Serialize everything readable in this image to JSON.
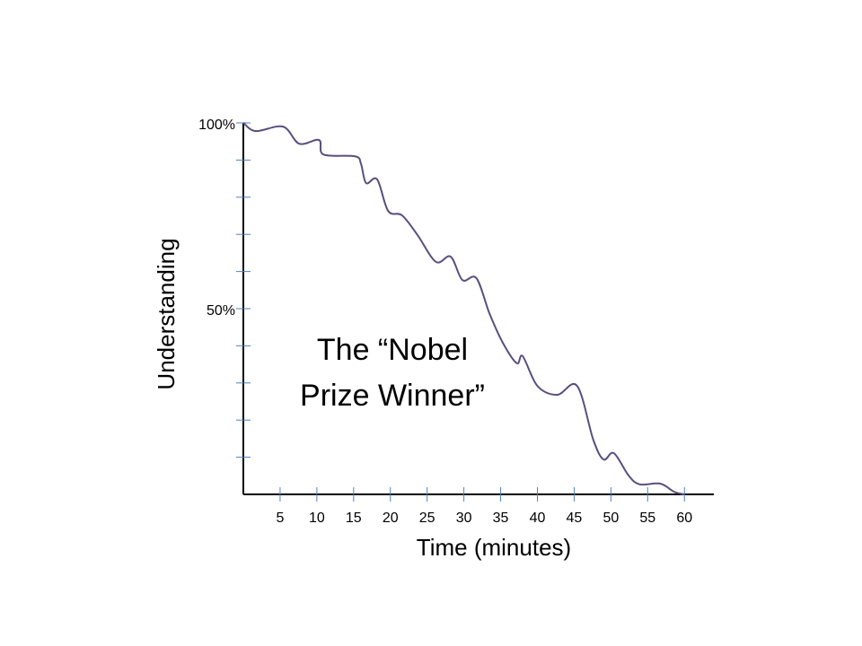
{
  "chart_data": {
    "type": "line",
    "annotation": [
      "The “Nobel",
      "Prize Winner”"
    ],
    "xlabel": "Time (minutes)",
    "ylabel": "Understanding",
    "xlim": [
      0,
      64
    ],
    "ylim": [
      0,
      100
    ],
    "xticks": [
      5,
      10,
      15,
      20,
      25,
      30,
      35,
      40,
      45,
      50,
      55,
      60
    ],
    "yticks": [
      {
        "value": 50,
        "label": "50%"
      },
      {
        "value": 100,
        "label": "100%"
      }
    ],
    "yminor_ticks": [
      10,
      20,
      30,
      40,
      60,
      70,
      80,
      90
    ],
    "x": [
      0,
      1.7,
      5.4,
      7.6,
      10.3,
      10.9,
      15.2,
      16,
      16.7,
      18.2,
      19.7,
      21.6,
      23.7,
      26.2,
      28.2,
      29.8,
      31.7,
      33.5,
      35.3,
      37.2,
      38,
      40,
      42.7,
      45.4,
      47.6,
      49,
      50.4,
      52.4,
      53.9,
      56.7,
      58.6,
      60
    ],
    "series": [
      {
        "color": "#5a4e7e",
        "values": [
          100,
          97.8,
          99,
          94.4,
          95.4,
          91.5,
          91,
          89,
          83.8,
          84.8,
          76.3,
          75.1,
          69.8,
          62.6,
          64,
          57.7,
          58.2,
          48.6,
          40.8,
          35.3,
          37.2,
          29.2,
          26.8,
          29.2,
          14.7,
          9.4,
          11.1,
          5.1,
          2.7,
          2.9,
          0.7,
          0
        ]
      }
    ],
    "tick_color": "#4f81bd"
  }
}
